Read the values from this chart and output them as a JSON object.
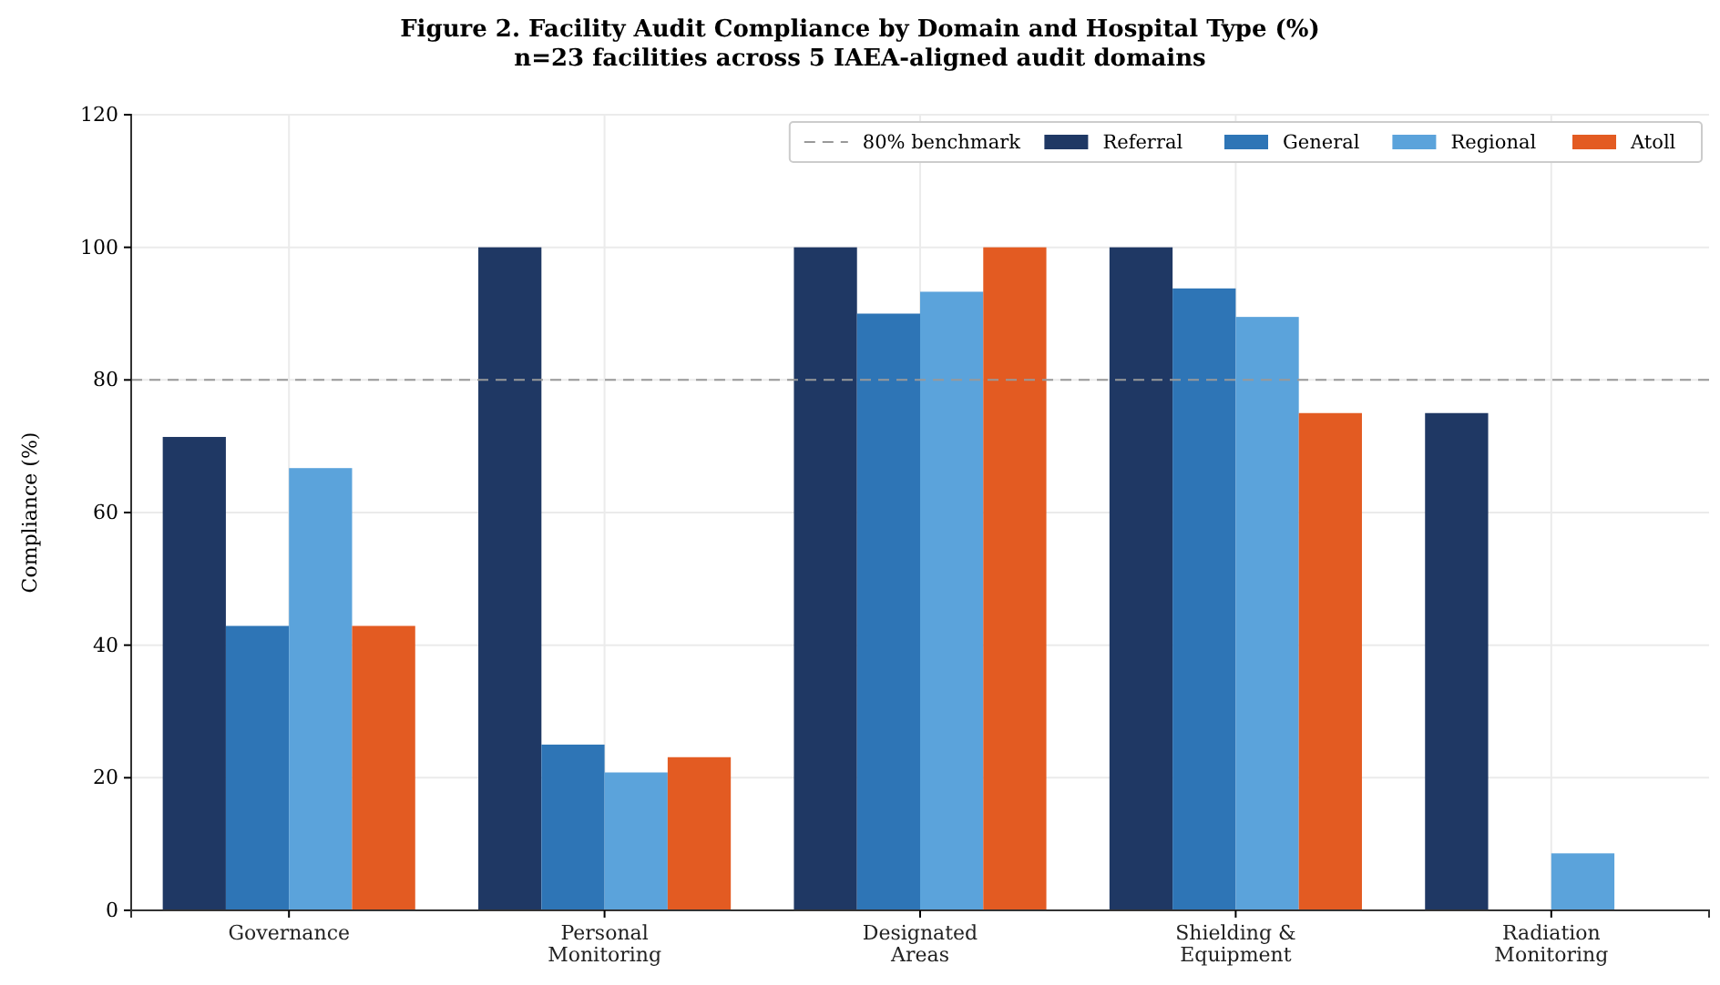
{
  "chart_data": {
    "type": "bar",
    "title": "Figure 2. Facility Audit Compliance by Domain and Hospital Type (%)",
    "subtitle": "n=23 facilities across 5 IAEA-aligned audit domains",
    "ylabel": "Compliance (%)",
    "categories": [
      "Governance",
      "Personal\nMonitoring",
      "Designated\nAreas",
      "Shielding &\nEquipment",
      "Radiation\nMonitoring"
    ],
    "series": [
      {
        "name": "Referral",
        "color": "#1f3864",
        "values": [
          71.4,
          100,
          100,
          100,
          75
        ]
      },
      {
        "name": "General",
        "color": "#2e75b6",
        "values": [
          42.9,
          25,
          90,
          93.8,
          0
        ]
      },
      {
        "name": "Regional",
        "color": "#5ba3db",
        "values": [
          66.7,
          20.8,
          93.3,
          89.5,
          8.6
        ]
      },
      {
        "name": "Atoll",
        "color": "#e35b22",
        "values": [
          42.9,
          23.1,
          100,
          75,
          0
        ]
      }
    ],
    "ylim": [
      0,
      120
    ],
    "yticks": [
      0,
      20,
      40,
      60,
      80,
      100,
      120
    ],
    "grid": true,
    "legend": "top right",
    "ref_lines": [
      {
        "axis": "y",
        "value": 80,
        "label": "80% benchmark",
        "color": "#999999",
        "line_style": "dashed"
      }
    ]
  }
}
